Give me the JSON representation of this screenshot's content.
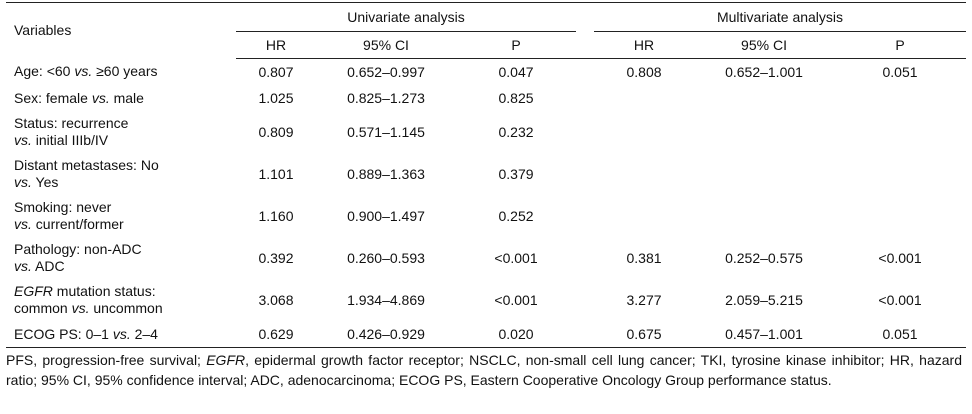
{
  "table": {
    "col_variables": "Variables",
    "group_univariate": "Univariate analysis",
    "group_multivariate": "Multivariate analysis",
    "col_hr": "HR",
    "col_ci": "95% CI",
    "col_p": "P",
    "rows": [
      {
        "l1_pre": "",
        "l1_ital": "",
        "l1_post": "Age: <60 ",
        "l1_vs": "vs.",
        "l1_tail": " ≥60 years",
        "l2_vs": "",
        "l2_post": "",
        "u_hr": "0.807",
        "u_ci": "0.652–0.997",
        "u_p": "0.047",
        "m_hr": "0.808",
        "m_ci": "0.652–1.001",
        "m_p": "0.051"
      },
      {
        "l1_pre": "",
        "l1_ital": "",
        "l1_post": "Sex: female ",
        "l1_vs": "vs.",
        "l1_tail": " male",
        "l2_vs": "",
        "l2_post": "",
        "u_hr": "1.025",
        "u_ci": "0.825–1.273",
        "u_p": "0.825",
        "m_hr": "",
        "m_ci": "",
        "m_p": ""
      },
      {
        "l1_pre": "",
        "l1_ital": "",
        "l1_post": "Status: recurrence",
        "l1_vs": "",
        "l1_tail": "",
        "l2_vs": "vs.",
        "l2_post": " initial IIIb/IV",
        "u_hr": "0.809",
        "u_ci": "0.571–1.145",
        "u_p": "0.232",
        "m_hr": "",
        "m_ci": "",
        "m_p": ""
      },
      {
        "l1_pre": "",
        "l1_ital": "",
        "l1_post": "Distant metastases: No",
        "l1_vs": "",
        "l1_tail": "",
        "l2_vs": "vs.",
        "l2_post": " Yes",
        "u_hr": "1.101",
        "u_ci": "0.889–1.363",
        "u_p": "0.379",
        "m_hr": "",
        "m_ci": "",
        "m_p": ""
      },
      {
        "l1_pre": "",
        "l1_ital": "",
        "l1_post": "Smoking: never",
        "l1_vs": "",
        "l1_tail": "",
        "l2_vs": "vs.",
        "l2_post": " current/former",
        "u_hr": "1.160",
        "u_ci": "0.900–1.497",
        "u_p": "0.252",
        "m_hr": "",
        "m_ci": "",
        "m_p": ""
      },
      {
        "l1_pre": "",
        "l1_ital": "",
        "l1_post": "Pathology: non-ADC",
        "l1_vs": "",
        "l1_tail": "",
        "l2_vs": "vs.",
        "l2_post": " ADC",
        "u_hr": "0.392",
        "u_ci": "0.260–0.593",
        "u_p": "<0.001",
        "m_hr": "0.381",
        "m_ci": "0.252–0.575",
        "m_p": "<0.001"
      },
      {
        "l1_pre": "",
        "l1_ital": "EGFR",
        "l1_post": " mutation status:",
        "l1_vs": "",
        "l1_tail": "",
        "l2_vs": "",
        "l2_post": "common vs. uncommon",
        "u_hr": "3.068",
        "u_ci": "1.934–4.869",
        "u_p": "<0.001",
        "m_hr": "3.277",
        "m_ci": "2.059–5.215",
        "m_p": "<0.001"
      },
      {
        "l1_pre": "",
        "l1_ital": "",
        "l1_post": "ECOG PS: 0–1 ",
        "l1_vs": "vs.",
        "l1_tail": " 2–4",
        "l2_vs": "",
        "l2_post": "",
        "u_hr": "0.629",
        "u_ci": "0.426–0.929",
        "u_p": "0.020",
        "m_hr": "0.675",
        "m_ci": "0.457–1.001",
        "m_p": "0.051"
      }
    ]
  },
  "footnote": {
    "part1": "PFS, progression-free survival; ",
    "ital": "EGFR",
    "part2": ", epidermal growth factor receptor; NSCLC, non-small cell lung cancer; TKI, tyrosine kinase inhibitor; HR, hazard ratio; 95% CI, 95% confidence interval; ADC, adenocarcinoma; ECOG PS, Eastern Cooperative Oncology Group performance status."
  }
}
